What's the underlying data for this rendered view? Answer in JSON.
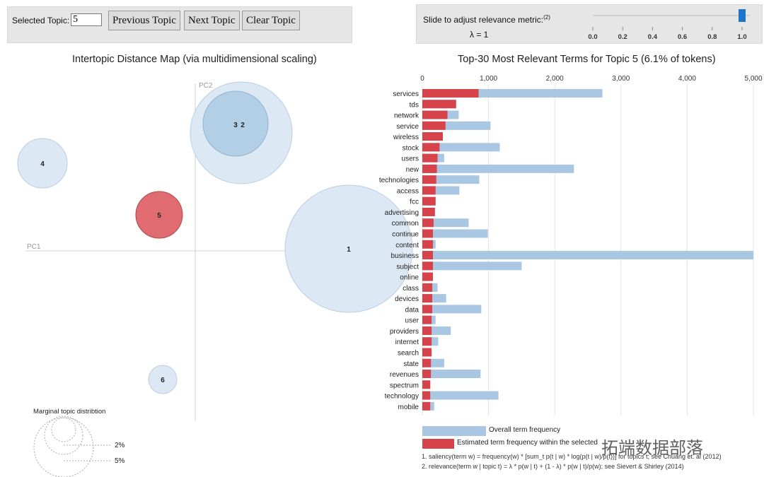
{
  "controls": {
    "selected_topic_label": "Selected Topic:",
    "selected_topic_value": "5",
    "prev_label": "Previous Topic",
    "next_label": "Next Topic",
    "clear_label": "Clear Topic"
  },
  "slider": {
    "label": "Slide to adjust relevance metric:",
    "footnote_ref": "(2)",
    "lambda_text": "λ = 1",
    "value": 1.0,
    "ticks": [
      "0.0",
      "0.2",
      "0.4",
      "0.6",
      "0.8",
      "1.0"
    ]
  },
  "left_panel": {
    "title": "Intertopic Distance Map (via multidimensional scaling)",
    "pc1": "PC1",
    "pc2": "PC2",
    "marginal_title": "Marginal topic distribtion",
    "marginal_labels": [
      "2%",
      "5%"
    ],
    "topics": [
      {
        "label": "1",
        "selected": false
      },
      {
        "label": "2",
        "selected": false
      },
      {
        "label": "3",
        "selected": false
      },
      {
        "label": "4",
        "selected": false
      },
      {
        "label": "5",
        "selected": true
      },
      {
        "label": "6",
        "selected": false
      }
    ]
  },
  "right_panel": {
    "title": "Top-30 Most Relevant Terms for Topic 5 (6.1% of tokens)",
    "legend_overall": "Overall term frequency",
    "legend_estimated": "Estimated term frequency within the selected topic",
    "footnote1": "1. saliency(term w) = frequency(w) * [sum_t p(t | w) * log(p(t | w)/p(t))] for topics t; see Chuang et. al (2012)",
    "footnote2": "2. relevance(term w | topic t) = λ * p(w | t) + (1 - λ) * p(w | t)/p(w); see Sievert & Shirley (2014)"
  },
  "chart_data": {
    "type": "bar",
    "orientation": "horizontal",
    "title": "Top-30 Most Relevant Terms for Topic 5 (6.1% of tokens)",
    "x_ticks": [
      "0",
      "1,000",
      "2,000",
      "3,000",
      "4,000",
      "5,000"
    ],
    "xlim": [
      0,
      5000
    ],
    "categories": [
      "services",
      "tds",
      "network",
      "service",
      "wireless",
      "stock",
      "users",
      "new",
      "technologies",
      "access",
      "fcc",
      "advertising",
      "common",
      "continue",
      "content",
      "business",
      "subject",
      "online",
      "class",
      "devices",
      "data",
      "user",
      "providers",
      "internet",
      "search",
      "state",
      "revenues",
      "spectrum",
      "technology",
      "mobile"
    ],
    "series": [
      {
        "name": "Overall term frequency",
        "color": "#a9c7e2",
        "values": [
          2720,
          510,
          550,
          1030,
          310,
          1170,
          330,
          2290,
          860,
          560,
          200,
          190,
          700,
          990,
          200,
          5000,
          1500,
          160,
          230,
          360,
          890,
          200,
          430,
          240,
          140,
          330,
          880,
          120,
          1150,
          180
        ]
      },
      {
        "name": "Estimated term frequency within the selected topic",
        "color": "#d6434a",
        "values": [
          850,
          510,
          380,
          350,
          310,
          260,
          230,
          220,
          210,
          200,
          200,
          190,
          170,
          160,
          160,
          160,
          160,
          160,
          150,
          150,
          150,
          140,
          140,
          140,
          140,
          130,
          130,
          120,
          120,
          120
        ]
      }
    ]
  },
  "watermark": "拓端数据部落"
}
